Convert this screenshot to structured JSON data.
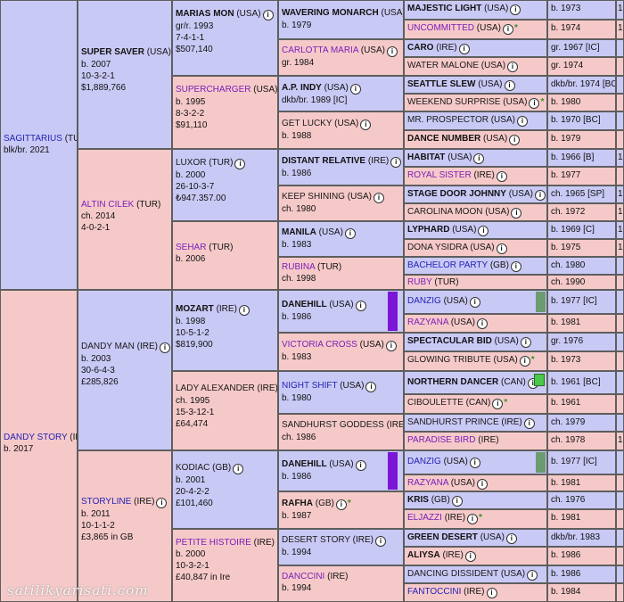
{
  "watermark": "satilikyarisati.com",
  "gen0": [
    {
      "name": "SAGITTARIUS",
      "country": "(TUR)",
      "detail": [
        "blk/br. 2021"
      ]
    },
    {
      "name": "DANDY STORY",
      "country": "(IRE)",
      "detail": [
        "b. 2017"
      ]
    }
  ],
  "gen1": [
    {
      "name": "SUPER SAVER",
      "country": "(USA)",
      "detail": [
        "b. 2007",
        "10-3-2-1",
        "$1,889,766"
      ]
    },
    {
      "name": "ALTIN CILEK",
      "country": "(TUR)",
      "detail": [
        "ch. 2014",
        "4-0-2-1"
      ]
    },
    {
      "name": "DANDY MAN",
      "country": "(IRE)",
      "detail": [
        "b. 2003",
        "30-6-4-3",
        "£285,826"
      ]
    },
    {
      "name": "STORYLINE",
      "country": "(IRE)",
      "detail": [
        "b. 2011",
        "10-1-1-2",
        "£3,865 in GB"
      ]
    }
  ],
  "gen2": [
    {
      "name": "MARIAS MON",
      "country": "(USA)",
      "detail": [
        "gr/r. 1993",
        "7-4-1-1",
        "$507,140"
      ]
    },
    {
      "name": "SUPERCHARGER",
      "country": "(USA)",
      "detail": [
        "b. 1995",
        "8-3-2-2",
        "$91,110"
      ]
    },
    {
      "name": "LUXOR",
      "country": "(TUR)",
      "detail": [
        "b. 2000",
        "26-10-3-7",
        "₺947.357.00"
      ]
    },
    {
      "name": "SEHAR",
      "country": "(TUR)",
      "detail": [
        "b. 2006"
      ]
    },
    {
      "name": "MOZART",
      "country": "(IRE)",
      "detail": [
        "b. 1998",
        "10-5-1-2",
        "$819,900"
      ]
    },
    {
      "name": "LADY ALEXANDER",
      "country": "(IRE)",
      "detail": [
        "ch. 1995",
        "15-3-12-1",
        "£64,474"
      ]
    },
    {
      "name": "KODIAC",
      "country": "(GB)",
      "detail": [
        "b. 2001",
        "20-4-2-2",
        "£101,460"
      ]
    },
    {
      "name": "PETITE HISTOIRE",
      "country": "(IRE)",
      "detail": [
        "b. 2000",
        "10-3-2-1",
        "£40,847 in Ire"
      ]
    }
  ],
  "gen3": [
    {
      "name": "WAVERING MONARCH",
      "country": "(USA)",
      "detail": "b. 1979"
    },
    {
      "name": "CARLOTTA MARIA",
      "country": "(USA)",
      "detail": "gr. 1984"
    },
    {
      "name": "A.P. INDY",
      "country": "(USA)",
      "detail": "dkb/br. 1989 [IC]"
    },
    {
      "name": "GET LUCKY",
      "country": "(USA)",
      "detail": "b. 1988"
    },
    {
      "name": "DISTANT RELATIVE",
      "country": "(IRE)",
      "detail": "b. 1986"
    },
    {
      "name": "KEEP SHINING",
      "country": "(USA)",
      "detail": "ch. 1980"
    },
    {
      "name": "MANILA",
      "country": "(USA)",
      "detail": "b. 1983"
    },
    {
      "name": "RUBINA",
      "country": "(TUR)",
      "detail": "ch. 1998"
    },
    {
      "name": "DANEHILL",
      "country": "(USA)",
      "detail": "b. 1986"
    },
    {
      "name": "VICTORIA CROSS",
      "country": "(USA)",
      "detail": "b. 1983"
    },
    {
      "name": "NIGHT SHIFT",
      "country": "(USA)",
      "detail": "b. 1980"
    },
    {
      "name": "SANDHURST GODDESS",
      "country": "(IRE)",
      "detail": "ch. 1986"
    },
    {
      "name": "DANEHILL",
      "country": "(USA)",
      "detail": "b. 1986"
    },
    {
      "name": "RAFHA",
      "country": "(GB)",
      "detail": "b. 1987"
    },
    {
      "name": "DESERT STORY",
      "country": "(IRE)",
      "detail": "b. 1994"
    },
    {
      "name": "DANCCINI",
      "country": "(IRE)",
      "detail": "b. 1994"
    }
  ],
  "gen4": [
    {
      "name": "MAJESTIC LIGHT",
      "country": "(USA)",
      "detail": "b. 1973"
    },
    {
      "name": "UNCOMMITTED",
      "country": "(USA)",
      "detail": "b. 1974"
    },
    {
      "name": "CARO",
      "country": "(IRE)",
      "detail": "gr. 1967 [IC]"
    },
    {
      "name": "WATER MALONE",
      "country": "(USA)",
      "detail": "gr. 1974"
    },
    {
      "name": "SEATTLE SLEW",
      "country": "(USA)",
      "detail": "dkb/br. 1974 [BC]"
    },
    {
      "name": "WEEKEND SURPRISE",
      "country": "(USA)",
      "detail": "b. 1980"
    },
    {
      "name": "MR. PROSPECTOR",
      "country": "(USA)",
      "detail": "b. 1970 [BC]"
    },
    {
      "name": "DANCE NUMBER",
      "country": "(USA)",
      "detail": "b. 1979"
    },
    {
      "name": "HABITAT",
      "country": "(USA)",
      "detail": "b. 1966 [B]"
    },
    {
      "name": "ROYAL SISTER",
      "country": "(IRE)",
      "detail": "b. 1977"
    },
    {
      "name": "STAGE DOOR JOHNNY",
      "country": "(USA)",
      "detail": "ch. 1965 [SP]"
    },
    {
      "name": "CAROLINA MOON",
      "country": "(USA)",
      "detail": "ch. 1972"
    },
    {
      "name": "LYPHARD",
      "country": "(USA)",
      "detail": "b. 1969 [C]"
    },
    {
      "name": "DONA YSIDRA",
      "country": "(USA)",
      "detail": "b. 1975"
    },
    {
      "name": "BACHELOR PARTY",
      "country": "(GB)",
      "detail": "ch. 1980"
    },
    {
      "name": "RUBY",
      "country": "(TUR)",
      "detail": "ch. 1990"
    },
    {
      "name": "DANZIG",
      "country": "(USA)",
      "detail": "b. 1977 [IC]"
    },
    {
      "name": "RAZYANA",
      "country": "(USA)",
      "detail": "b. 1981"
    },
    {
      "name": "SPECTACULAR BID",
      "country": "(USA)",
      "detail": "gr. 1976"
    },
    {
      "name": "GLOWING TRIBUTE",
      "country": "(USA)",
      "detail": "b. 1973"
    },
    {
      "name": "NORTHERN DANCER",
      "country": "(CAN)",
      "detail": "b. 1961 [BC]"
    },
    {
      "name": "CIBOULETTE",
      "country": "(CAN)",
      "detail": "b. 1961"
    },
    {
      "name": "SANDHURST PRINCE",
      "country": "(IRE)",
      "detail": "ch. 1979"
    },
    {
      "name": "PARADISE BIRD",
      "country": "(IRE)",
      "detail": "ch. 1978"
    },
    {
      "name": "DANZIG",
      "country": "(USA)",
      "detail": "b. 1977 [IC]"
    },
    {
      "name": "RAZYANA",
      "country": "(USA)",
      "detail": "b. 1981"
    },
    {
      "name": "KRIS",
      "country": "(GB)",
      "detail": "ch. 1976"
    },
    {
      "name": "ELJAZZI",
      "country": "(IRE)",
      "detail": "b. 1981"
    },
    {
      "name": "GREEN DESERT",
      "country": "(USA)",
      "detail": "dkb/br. 1983"
    },
    {
      "name": "ALIYSA",
      "country": "(IRE)",
      "detail": "b. 1986"
    },
    {
      "name": "DANCING DISSIDENT",
      "country": "(USA)",
      "detail": "b. 1986"
    },
    {
      "name": "FANTOCCINI",
      "country": "(IRE)",
      "detail": "b. 1984"
    }
  ],
  "gen6_edge": [
    "1",
    "1",
    "",
    "",
    "",
    "",
    "",
    "",
    "1",
    "",
    "1",
    "1",
    "1",
    "1",
    "",
    "",
    "",
    "",
    "",
    "",
    "",
    "",
    "",
    "1",
    "",
    "",
    "",
    "",
    "",
    "",
    "",
    ""
  ]
}
